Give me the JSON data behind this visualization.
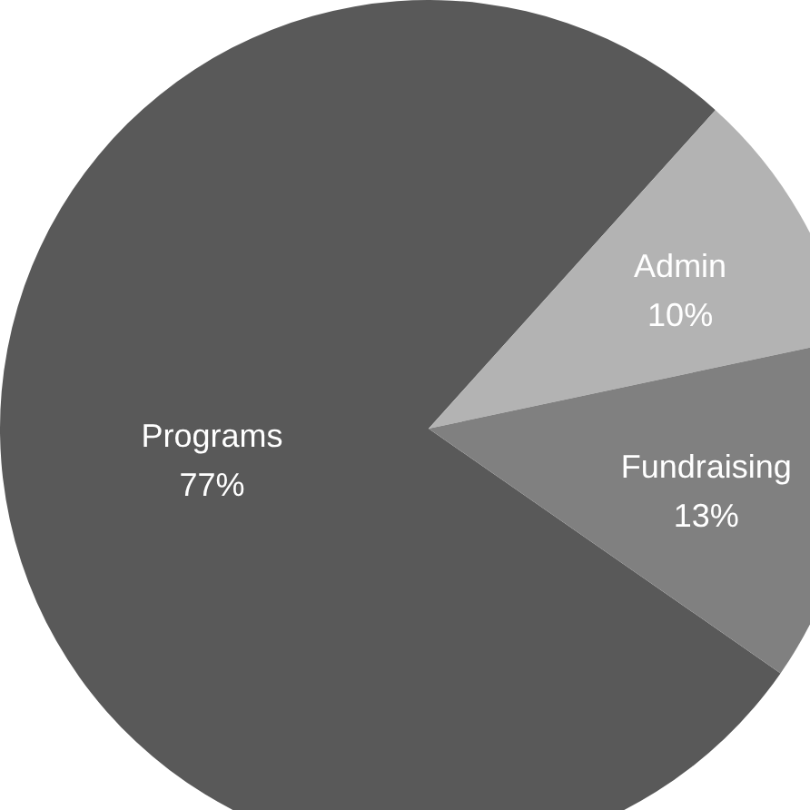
{
  "chart_data": {
    "type": "pie",
    "categories": [
      "Programs",
      "Admin",
      "Fundraising"
    ],
    "values": [
      77,
      10,
      13
    ],
    "value_labels": [
      "77%",
      "10%",
      "13%"
    ],
    "colors": [
      "#595959",
      "#b3b3b3",
      "#808080"
    ]
  }
}
